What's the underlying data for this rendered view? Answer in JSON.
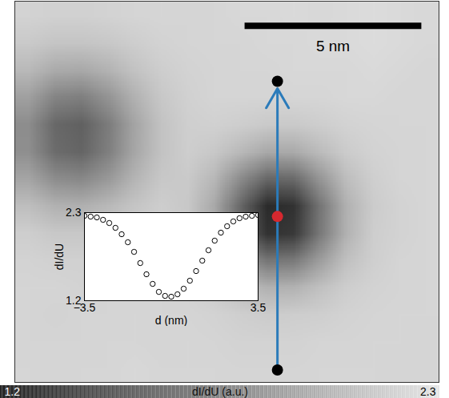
{
  "chart_data": [
    {
      "type": "heatmap",
      "xlim": [
        0,
        12
      ],
      "ylim": [
        0,
        10.8
      ],
      "tick_labels": false,
      "cells": [
        [
          2.19,
          2.18,
          2.18,
          2.19,
          2.2,
          2.21,
          2.2,
          2.21,
          2.22,
          2.22,
          2.23,
          2.22,
          2.23,
          2.24,
          2.23,
          2.22
        ],
        [
          2.14,
          2.11,
          2.11,
          2.13,
          2.16,
          2.19,
          2.2,
          2.21,
          2.21,
          2.22,
          2.22,
          2.23,
          2.23,
          2.24,
          2.23,
          2.22
        ],
        [
          2.04,
          1.96,
          1.95,
          2.01,
          2.1,
          2.16,
          2.19,
          2.2,
          2.21,
          2.21,
          2.22,
          2.22,
          2.22,
          2.23,
          2.22,
          2.21
        ],
        [
          1.9,
          1.74,
          1.71,
          1.83,
          2.0,
          2.13,
          2.18,
          2.2,
          2.2,
          2.2,
          2.21,
          2.21,
          2.22,
          2.22,
          2.21,
          2.21
        ],
        [
          1.79,
          1.58,
          1.54,
          1.69,
          1.93,
          2.1,
          2.17,
          2.18,
          2.16,
          2.14,
          2.14,
          2.16,
          2.19,
          2.2,
          2.21,
          2.21
        ],
        [
          1.8,
          1.6,
          1.56,
          1.71,
          1.94,
          2.1,
          2.16,
          2.13,
          2.04,
          1.95,
          1.96,
          2.06,
          2.15,
          2.19,
          2.2,
          2.21
        ],
        [
          1.93,
          1.79,
          1.76,
          1.86,
          2.02,
          2.13,
          2.14,
          2.03,
          1.78,
          1.57,
          1.59,
          1.84,
          2.07,
          2.17,
          2.2,
          2.21
        ],
        [
          2.07,
          2.0,
          1.99,
          2.04,
          2.11,
          2.16,
          2.13,
          1.95,
          1.57,
          1.23,
          1.27,
          1.66,
          2.0,
          2.15,
          2.19,
          2.21
        ],
        [
          2.16,
          2.13,
          2.13,
          2.14,
          2.17,
          2.18,
          2.14,
          1.96,
          1.59,
          1.27,
          1.31,
          1.68,
          2.01,
          2.16,
          2.19,
          2.21
        ],
        [
          2.19,
          2.18,
          2.18,
          2.19,
          2.19,
          2.19,
          2.16,
          2.06,
          1.84,
          1.66,
          1.68,
          1.89,
          2.09,
          2.17,
          2.2,
          2.21
        ],
        [
          2.2,
          2.2,
          2.19,
          2.2,
          2.2,
          2.2,
          2.19,
          2.15,
          2.07,
          2.0,
          2.01,
          2.09,
          2.16,
          2.19,
          2.2,
          2.21
        ],
        [
          2.2,
          2.19,
          2.2,
          2.2,
          2.21,
          2.2,
          2.2,
          2.19,
          2.17,
          2.15,
          2.16,
          2.17,
          2.19,
          2.2,
          2.21,
          2.21
        ],
        [
          2.2,
          2.2,
          2.2,
          2.21,
          2.21,
          2.2,
          2.21,
          2.2,
          2.19,
          2.19,
          2.19,
          2.2,
          2.2,
          2.21,
          2.21,
          2.2
        ],
        [
          2.21,
          2.2,
          2.21,
          2.21,
          2.22,
          2.21,
          2.21,
          2.21,
          2.2,
          2.2,
          2.2,
          2.21,
          2.21,
          2.21,
          2.2,
          2.2
        ]
      ],
      "colorbar": {
        "label": "dI/dU (a.u.)",
        "range": [
          1.2,
          2.3
        ],
        "ticks": [
          1.2,
          2.3
        ]
      },
      "scale_bar": {
        "length": 5,
        "label": "5 nm"
      },
      "profile_line": {
        "x": 7.43,
        "y": [
          10.45,
          2.27
        ],
        "color": "#2b7bba"
      },
      "profile_center": {
        "x": 7.43,
        "y": 6.1,
        "color": "#d6282f"
      }
    },
    {
      "type": "scatter",
      "xlabel": "d (nm)",
      "ylabel": "dI/dU",
      "x": [
        -3.5,
        -3.25,
        -3.0,
        -2.75,
        -2.5,
        -2.25,
        -2.0,
        -1.75,
        -1.5,
        -1.25,
        -1.0,
        -0.75,
        -0.5,
        -0.25,
        0,
        0.25,
        0.5,
        0.75,
        1.0,
        1.25,
        1.5,
        1.75,
        2.0,
        2.25,
        2.5,
        2.75,
        3.0,
        3.25,
        3.5
      ],
      "values": [
        2.26,
        2.25,
        2.24,
        2.21,
        2.17,
        2.11,
        2.03,
        1.93,
        1.81,
        1.67,
        1.53,
        1.41,
        1.31,
        1.26,
        1.25,
        1.28,
        1.35,
        1.45,
        1.57,
        1.7,
        1.83,
        1.95,
        2.05,
        2.13,
        2.19,
        2.23,
        2.25,
        2.26,
        2.27
      ],
      "xlim": [
        -3.5,
        3.5
      ],
      "xticks": [
        {
          "value": -3.5,
          "label": "−3.5"
        },
        3.5
      ],
      "ylim": [
        1.2,
        2.3
      ],
      "yticks": [
        1.2,
        2.3
      ],
      "marker": "circle",
      "color": "#000000"
    }
  ]
}
